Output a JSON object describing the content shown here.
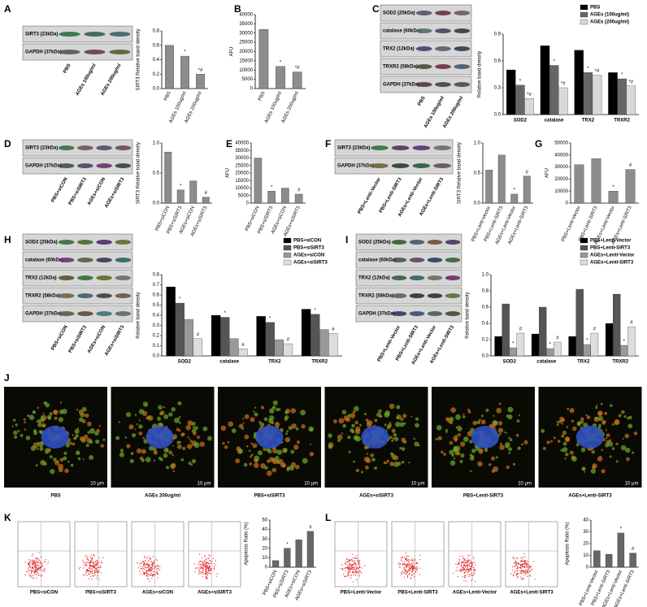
{
  "panel_labels": [
    "A",
    "B",
    "C",
    "D",
    "E",
    "F",
    "G",
    "H",
    "I",
    "J",
    "K",
    "L"
  ],
  "blots": [
    {
      "rows": [
        "SIRT3 (23kDa)",
        "GAPDH (37kDa)"
      ],
      "lanes": [
        "PBS",
        "AGEs 100ug/ml",
        "AGEs 200ug/ml"
      ]
    },
    {
      "rows": [
        "SOD2 (25kDa)",
        "catalase (60kDa)",
        "TRX2 (12kDa)",
        "TRXR2 (58kDa)",
        "GAPDH (37kDa)"
      ],
      "lanes": [
        "PBS",
        "AGEs 100ug/ml",
        "AGEs 200ug/ml"
      ]
    },
    {
      "rows": [
        "SIRT3 (23kDa)",
        "GAPDH (37kDa)"
      ],
      "lanes": [
        "PBS+siCON",
        "PBS+siSIRT3",
        "AGEs+siCON",
        "AGEs+siSIRT3"
      ]
    },
    {
      "rows": [
        "SIRT3 (23kDa)",
        "GAPDH (37kDa)"
      ],
      "lanes": [
        "PBS+Lenti-Vector",
        "PBS+Lenti-SIRT3",
        "AGEs+Lenti-Vector",
        "AGEs+Lenti-SIRT3"
      ]
    },
    {
      "rows": [
        "SOD2 (25kDa)",
        "catalase (60kDa)",
        "TRX2 (12kDa)",
        "TRXR2 (58kDa)",
        "GAPDH (37kDa)"
      ],
      "lanes": [
        "PBS+siCON",
        "PBS+siSIRT3",
        "AGEs+siCON",
        "AGEs+siSIRT3"
      ]
    },
    {
      "rows": [
        "SOD2 (25kDa)",
        "catalase (60kDa)",
        "TRX2 (12kDa)",
        "TRXR2 (58kDa)",
        "GAPDH (37kDa)"
      ],
      "lanes": [
        "PBS+Lenti-Vector",
        "PBS+Lenti-SIRT3",
        "AGEs+Lenti-Vector",
        "AGEs+Lenti-SIRT3"
      ]
    }
  ],
  "chart_data": [
    {
      "type": "bar",
      "ylabel": "SIRT3 Relative band density",
      "categories": [
        "PBS",
        "AGEs 100ug/ml",
        "AGEs 200ug/ml"
      ],
      "values": [
        0.6,
        0.45,
        0.2
      ],
      "annotations": [
        null,
        "*",
        "*#"
      ],
      "color": "#8c8c8c",
      "ylim": [
        0,
        0.8
      ],
      "yticks": [
        {
          "value": 0,
          "label": "0.0"
        },
        0.2,
        0.4,
        0.6,
        0.8
      ]
    },
    {
      "type": "bar",
      "ylabel": "AFU",
      "categories": [
        "PBS",
        "AGEs 100ug/ml",
        "AGEs 200ug/ml"
      ],
      "values": [
        32000,
        12000,
        9000
      ],
      "annotations": [
        null,
        "*",
        "*#"
      ],
      "color": "#8c8c8c",
      "ylim": [
        0,
        40000
      ],
      "yticks": [
        0,
        5000,
        10000,
        15000,
        20000,
        25000,
        30000,
        35000,
        40000
      ]
    },
    {
      "type": "grouped-bar",
      "ylabel": "Relative band density",
      "categories": [
        "SOD2",
        "catalase",
        "TRX2",
        "TRXR2"
      ],
      "series": [
        {
          "name": "PBS",
          "color": "#000000",
          "values": [
            0.5,
            0.77,
            0.72,
            0.47
          ],
          "annotations": [
            null,
            null,
            null,
            null
          ]
        },
        {
          "name": "AGEs (100ug/ml)",
          "color": "#666666",
          "values": [
            0.33,
            0.55,
            0.47,
            0.4
          ],
          "annotations": [
            "*",
            "*",
            "*",
            "*"
          ]
        },
        {
          "name": "AGEs (200ug/ml)",
          "color": "#d9d9d9",
          "values": [
            0.18,
            0.3,
            0.44,
            0.32
          ],
          "annotations": [
            "*#",
            "*#",
            "*#",
            "*#"
          ]
        }
      ],
      "ylim": [
        0,
        0.9
      ],
      "yticks": [
        {
          "value": 0,
          "label": "0.0"
        },
        0.3,
        0.6,
        0.9
      ]
    },
    {
      "type": "bar",
      "ylabel": "SIRT3 Relative band density",
      "categories": [
        "PBS+siCON",
        "PBS+siSIRT3",
        "AGEs+siCON",
        "AGEs+siSIRT3"
      ],
      "values": [
        0.85,
        0.22,
        0.37,
        0.1
      ],
      "annotations": [
        null,
        "*",
        null,
        "#"
      ],
      "color": "#8c8c8c",
      "ylim": [
        0,
        1
      ],
      "yticks": [
        {
          "value": 0,
          "label": "0.0"
        },
        0.5,
        {
          "value": 1,
          "label": "1.0"
        }
      ]
    },
    {
      "type": "bar",
      "ylabel": "AFU",
      "categories": [
        "PBS+siCON",
        "PBS+siSIRT3",
        "AGEs+siCON",
        "AGEs+siSIRT3"
      ],
      "values": [
        30000,
        8000,
        10000,
        6000
      ],
      "annotations": [
        null,
        "*",
        null,
        "#"
      ],
      "color": "#8c8c8c",
      "ylim": [
        0,
        40000
      ],
      "yticks": [
        0,
        5000,
        10000,
        15000,
        20000,
        25000,
        30000,
        35000,
        40000
      ]
    },
    {
      "type": "bar",
      "ylabel": "SIRT3 Relative band density",
      "categories": [
        "PBS+Lenti-Vector",
        "PBS+Lenti-SIRT3",
        "AGEs+Lenti-Vector",
        "AGEs+Lenti-SIRT3"
      ],
      "values": [
        0.55,
        0.8,
        0.15,
        0.45
      ],
      "annotations": [
        null,
        null,
        "*",
        "#"
      ],
      "color": "#8c8c8c",
      "ylim": [
        0,
        1
      ],
      "yticks": [
        {
          "value": 0,
          "label": "0.0"
        },
        0.5,
        {
          "value": 1,
          "label": "1.0"
        }
      ]
    },
    {
      "type": "bar",
      "ylabel": "AFU",
      "categories": [
        "PBS+Lenti-Vector",
        "PBS+Lenti-SIRT3",
        "AGEs+Lenti-Vector",
        "AGEs+Lenti-SIRT3"
      ],
      "values": [
        32000,
        37000,
        10000,
        28000
      ],
      "annotations": [
        null,
        null,
        "*",
        "#"
      ],
      "color": "#8c8c8c",
      "ylim": [
        0,
        50000
      ],
      "yticks": [
        0,
        10000,
        20000,
        30000,
        40000,
        50000
      ]
    },
    {
      "type": "grouped-bar",
      "ylabel": "Relative band density",
      "categories": [
        "SOD2",
        "catalase",
        "TRX2",
        "TRXR2"
      ],
      "series": [
        {
          "name": "PBS+siCON",
          "color": "#000000",
          "values": [
            0.68,
            0.4,
            0.39,
            0.46
          ],
          "annotations": [
            null,
            null,
            null,
            null
          ]
        },
        {
          "name": "PBS+siSIRT3",
          "color": "#555555",
          "values": [
            0.52,
            0.38,
            0.33,
            0.41
          ],
          "annotations": [
            "*",
            "*",
            "*",
            "*"
          ]
        },
        {
          "name": "AGEs+siCON",
          "color": "#999999",
          "values": [
            0.36,
            0.17,
            0.16,
            0.26
          ],
          "annotations": [
            null,
            null,
            null,
            null
          ]
        },
        {
          "name": "AGEs+siSIRT3",
          "color": "#dddddd",
          "values": [
            0.17,
            0.07,
            0.12,
            0.22
          ],
          "annotations": [
            "#",
            "#",
            "#",
            "#"
          ]
        }
      ],
      "ylim": [
        0,
        0.8
      ],
      "yticks": [
        {
          "value": 0,
          "label": "0.0"
        },
        0.1,
        0.2,
        0.3,
        0.4,
        0.5,
        0.6,
        0.7,
        0.8
      ]
    },
    {
      "type": "grouped-bar",
      "ylabel": "Relative band density",
      "categories": [
        "SOD2",
        "catalase",
        "TRX2",
        "TRXR2"
      ],
      "series": [
        {
          "name": "PBS+Lenti-Vector",
          "color": "#000000",
          "values": [
            0.24,
            0.27,
            0.24,
            0.4
          ],
          "annotations": [
            null,
            null,
            null,
            null
          ]
        },
        {
          "name": "PBS+Lenti-SIRT3",
          "color": "#555555",
          "values": [
            0.64,
            0.6,
            0.82,
            0.76
          ],
          "annotations": [
            null,
            null,
            null,
            null
          ]
        },
        {
          "name": "AGEs+Lenti-Vector",
          "color": "#999999",
          "values": [
            0.1,
            0.09,
            0.14,
            0.13
          ],
          "annotations": [
            "*",
            "*",
            "*",
            "*"
          ]
        },
        {
          "name": "AGEs+Lenti-SIRT3",
          "color": "#dddddd",
          "values": [
            0.28,
            0.17,
            0.28,
            0.36
          ],
          "annotations": [
            "#",
            "#",
            "#",
            "#"
          ]
        }
      ],
      "ylim": [
        0,
        1
      ],
      "yticks": [
        {
          "value": 0,
          "label": "0.0"
        },
        0.2,
        0.4,
        0.6,
        0.8,
        {
          "value": 1,
          "label": "1.0"
        }
      ]
    },
    {
      "type": "bar",
      "ylabel": "Apoptosis Ratio (%)",
      "categories": [
        "PBS+siCON",
        "PBS+siSIRT3",
        "AGEs+siCON",
        "AGEs+siSIRT3"
      ],
      "values": [
        7,
        20,
        29,
        38
      ],
      "annotations": [
        null,
        "*",
        null,
        "#"
      ],
      "color": "#666666",
      "ylim": [
        0,
        50
      ],
      "yticks": [
        0,
        10,
        20,
        30,
        40,
        50
      ]
    },
    {
      "type": "bar",
      "ylabel": "Apoptosis Ratio (%)",
      "categories": [
        "PBS+Lenti-Vector",
        "PBS+Lenti-SIRT3",
        "AGEs+Lenti-Vector",
        "AGEs+Lenti-SIRT3"
      ],
      "values": [
        14,
        11,
        29,
        12
      ],
      "annotations": [
        null,
        null,
        "*",
        "#"
      ],
      "color": "#666666",
      "ylim": [
        0,
        40
      ],
      "yticks": [
        0,
        10,
        20,
        30,
        40
      ]
    }
  ],
  "images": {
    "labels": [
      "PBS",
      "AGEs 200ug/ml",
      "PBS+siSIRT3",
      "AGEs+siSIRT3",
      "PBS+Lenti-SIRT3",
      "AGEs+Lenti-SIRT3"
    ],
    "scale_bar": "10 μm"
  },
  "flow_labels": [
    "PBS+siCON",
    "PBS+siSIRT3",
    "AGEs+siCON",
    "AGEs+siSIRT3",
    "PBS+Lenti-Vector",
    "PBS+Lenti-SIRT3",
    "AGEs+Lenti-Vector",
    "AGEs+Lenti-SIRT3"
  ]
}
